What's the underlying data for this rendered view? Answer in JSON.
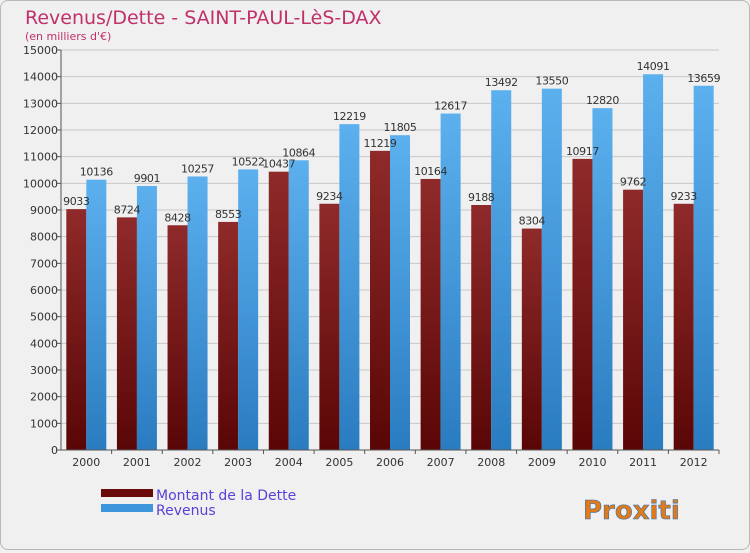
{
  "page": {
    "title": "Revenus/Dette - SAINT-PAUL-LèS-DAX",
    "subtitle": "(en milliers d'€)",
    "logo_text": "Proxiti"
  },
  "colors": {
    "title": "#c0306a",
    "debt": "#7a1414",
    "revenue": "#3d96dc",
    "legend_text": "#5b3fd6"
  },
  "chart_data": {
    "type": "bar",
    "title": "Revenus/Dette - SAINT-PAUL-LèS-DAX",
    "ylabel": "(en milliers d'€)",
    "categories": [
      "2000",
      "2001",
      "2002",
      "2003",
      "2004",
      "2005",
      "2006",
      "2007",
      "2008",
      "2009",
      "2010",
      "2011",
      "2012"
    ],
    "series": [
      {
        "name": "Montant de la Dette",
        "values": [
          9033,
          8724,
          8428,
          8553,
          10437,
          9234,
          11219,
          10164,
          9188,
          8304,
          10917,
          9762,
          9233
        ]
      },
      {
        "name": "Revenus",
        "values": [
          10136,
          9901,
          10257,
          10522,
          10864,
          12219,
          11805,
          12617,
          13492,
          13550,
          12820,
          14091,
          13659
        ]
      }
    ],
    "ylim": [
      0,
      15000
    ],
    "yticks": [
      0,
      1000,
      2000,
      3000,
      4000,
      5000,
      6000,
      7000,
      8000,
      9000,
      10000,
      11000,
      12000,
      13000,
      14000,
      15000
    ],
    "grid": true,
    "legend_position": "bottom-left"
  }
}
